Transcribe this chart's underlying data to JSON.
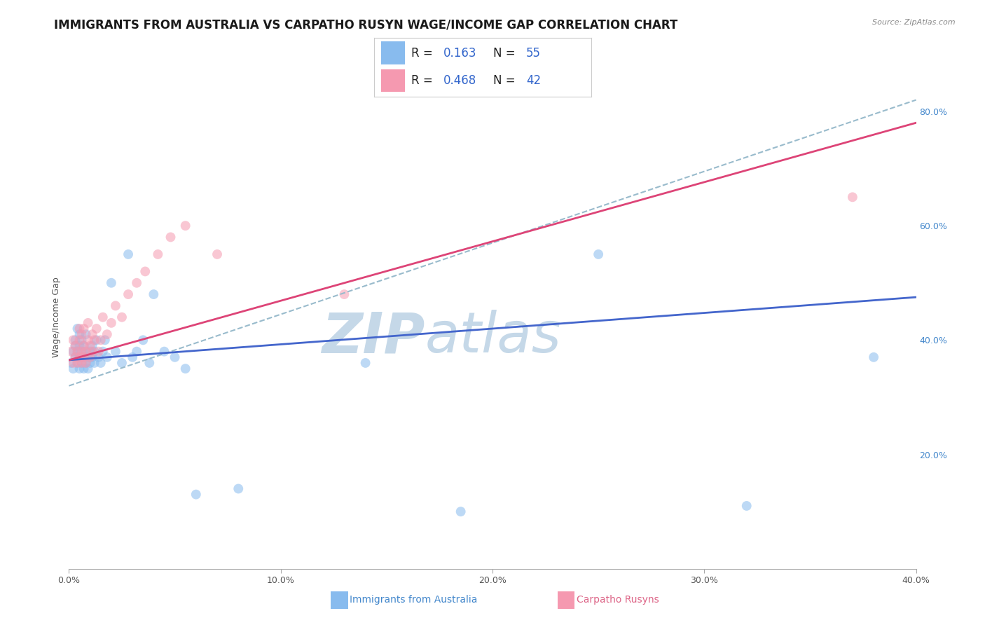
{
  "title": "IMMIGRANTS FROM AUSTRALIA VS CARPATHO RUSYN WAGE/INCOME GAP CORRELATION CHART",
  "source": "Source: ZipAtlas.com",
  "ylabel": "Wage/Income Gap",
  "xlim": [
    0.0,
    0.4
  ],
  "ylim": [
    0.0,
    0.88
  ],
  "xtick_vals": [
    0.0,
    0.1,
    0.2,
    0.3,
    0.4
  ],
  "xtick_labels": [
    "0.0%",
    "10.0%",
    "20.0%",
    "30.0%",
    "40.0%"
  ],
  "ytick_vals_right": [
    0.2,
    0.4,
    0.6,
    0.8
  ],
  "ytick_labels_right": [
    "20.0%",
    "40.0%",
    "60.0%",
    "80.0%"
  ],
  "legend_r1": "R = ",
  "legend_v1": "0.163",
  "legend_n1": "   N = ",
  "legend_nv1": "55",
  "legend_r2": "R = ",
  "legend_v2": "0.468",
  "legend_n2": "   N = ",
  "legend_nv2": "42",
  "blue_scatter_color": "#88bbee",
  "pink_scatter_color": "#f599b0",
  "blue_line_color": "#4466cc",
  "pink_line_color": "#dd4477",
  "dashed_line_color": "#99bbcc",
  "watermark_zip": "ZIP",
  "watermark_atlas": "atlas",
  "watermark_color": "#c5d8e8",
  "australia_points_x": [
    0.001,
    0.002,
    0.002,
    0.003,
    0.003,
    0.003,
    0.004,
    0.004,
    0.004,
    0.005,
    0.005,
    0.005,
    0.005,
    0.006,
    0.006,
    0.006,
    0.007,
    0.007,
    0.007,
    0.008,
    0.008,
    0.008,
    0.009,
    0.009,
    0.01,
    0.01,
    0.011,
    0.011,
    0.012,
    0.012,
    0.013,
    0.014,
    0.015,
    0.016,
    0.017,
    0.018,
    0.02,
    0.022,
    0.025,
    0.028,
    0.03,
    0.032,
    0.035,
    0.038,
    0.04,
    0.045,
    0.05,
    0.055,
    0.06,
    0.08,
    0.14,
    0.185,
    0.25,
    0.32,
    0.38
  ],
  "australia_points_y": [
    0.36,
    0.38,
    0.35,
    0.39,
    0.37,
    0.4,
    0.36,
    0.38,
    0.42,
    0.37,
    0.35,
    0.39,
    0.41,
    0.36,
    0.38,
    0.4,
    0.35,
    0.37,
    0.39,
    0.36,
    0.38,
    0.41,
    0.35,
    0.37,
    0.36,
    0.38,
    0.37,
    0.39,
    0.36,
    0.38,
    0.4,
    0.37,
    0.36,
    0.38,
    0.4,
    0.37,
    0.5,
    0.38,
    0.36,
    0.55,
    0.37,
    0.38,
    0.4,
    0.36,
    0.48,
    0.38,
    0.37,
    0.35,
    0.13,
    0.14,
    0.36,
    0.1,
    0.55,
    0.11,
    0.37
  ],
  "rusyn_points_x": [
    0.001,
    0.002,
    0.002,
    0.003,
    0.003,
    0.004,
    0.004,
    0.005,
    0.005,
    0.005,
    0.006,
    0.006,
    0.006,
    0.007,
    0.007,
    0.007,
    0.008,
    0.008,
    0.009,
    0.009,
    0.01,
    0.01,
    0.011,
    0.011,
    0.012,
    0.013,
    0.014,
    0.015,
    0.016,
    0.018,
    0.02,
    0.022,
    0.025,
    0.028,
    0.032,
    0.036,
    0.042,
    0.048,
    0.055,
    0.07,
    0.13,
    0.37
  ],
  "rusyn_points_y": [
    0.38,
    0.36,
    0.4,
    0.37,
    0.39,
    0.36,
    0.38,
    0.37,
    0.4,
    0.42,
    0.36,
    0.38,
    0.41,
    0.37,
    0.39,
    0.42,
    0.36,
    0.38,
    0.4,
    0.43,
    0.37,
    0.39,
    0.38,
    0.41,
    0.4,
    0.42,
    0.38,
    0.4,
    0.44,
    0.41,
    0.43,
    0.46,
    0.44,
    0.48,
    0.5,
    0.52,
    0.55,
    0.58,
    0.6,
    0.55,
    0.48,
    0.65
  ],
  "blue_line_x": [
    0.0,
    0.4
  ],
  "blue_line_y": [
    0.365,
    0.475
  ],
  "pink_line_x": [
    0.0,
    0.4
  ],
  "pink_line_y": [
    0.365,
    0.78
  ],
  "dashed_line_x": [
    0.0,
    0.4
  ],
  "dashed_line_y": [
    0.32,
    0.82
  ],
  "grid_color": "#ccddee",
  "background_color": "#ffffff",
  "legend_box_color": "#aaccdd",
  "title_fontsize": 12,
  "tick_fontsize": 9,
  "ylabel_fontsize": 9,
  "legend_fontsize": 12,
  "scatter_size": 100,
  "scatter_alpha": 0.55,
  "bottom_label_blue": "Immigrants from Australia",
  "bottom_label_pink": "Carpatho Rusyns"
}
